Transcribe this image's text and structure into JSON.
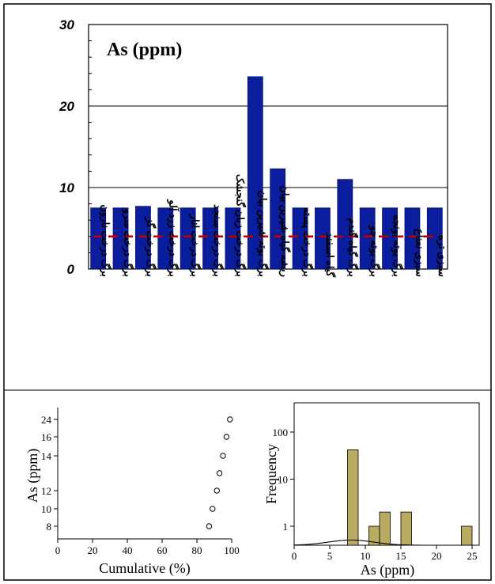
{
  "chart_data": [
    {
      "type": "bar",
      "title": "As (ppm)",
      "categories": [
        "برگ درخت نارون",
        "برگ درخت سرو",
        "برگ درخت گز",
        "برگ درخت زرد آلو",
        "برگ درخت انار",
        "برگ درخت سنجد",
        "برگ درخت زبان گنجشک",
        "برگ بوته شیرین بیان",
        "ریشه گیاه شیرین بیان",
        "برگ درخت پسته",
        "گیاه اسفند",
        "برگ گیاه گندم",
        "برگ بوته جو",
        "برگ بوته یونجه",
        "سبزی نعناع",
        "سبزی تره"
      ],
      "values": [
        7.5,
        7.5,
        7.7,
        7.5,
        7.5,
        7.5,
        7.5,
        23.6,
        12.3,
        7.5,
        7.5,
        11.0,
        7.5,
        7.5,
        7.5,
        7.5
      ],
      "reference_line": {
        "value": 4.0,
        "style": "dashed",
        "color": "#c00000"
      },
      "ylim": [
        0,
        30
      ],
      "yticks": [
        "0",
        "10",
        "20",
        "30"
      ],
      "gridlines": [
        10,
        20,
        30
      ],
      "bar_color": "#0a1d9c",
      "legend": "none"
    },
    {
      "type": "scatter",
      "xlabel": "Cumulative (%)",
      "ylabel": "As (ppm)",
      "xticks": [
        "0",
        "20",
        "40",
        "60",
        "80",
        "100"
      ],
      "yticks": [
        "8",
        "10",
        "12",
        "14",
        "16",
        "24"
      ],
      "xlim": [
        0,
        100
      ],
      "points": [
        {
          "x": 87,
          "y": "8"
        },
        {
          "x": 89,
          "y": "10"
        },
        {
          "x": 91.5,
          "y": "12"
        },
        {
          "x": 93,
          "y": "13"
        },
        {
          "x": 95,
          "y": "14"
        },
        {
          "x": 97,
          "y": "16"
        },
        {
          "x": 99,
          "y": "24"
        }
      ],
      "marker": "open-circle"
    },
    {
      "type": "bar",
      "subtype": "histogram",
      "xlabel": "As (ppm)",
      "ylabel": "Frequency",
      "xticks": [
        "0",
        "5",
        "10",
        "15",
        "20",
        "25"
      ],
      "yticks": [
        "1",
        "10",
        "100"
      ],
      "xlim": [
        0,
        26
      ],
      "yscale": "log",
      "bins": [
        {
          "x0": 7.5,
          "x1": 9,
          "count": 42
        },
        {
          "x0": 10.5,
          "x1": 12,
          "count": 1
        },
        {
          "x0": 12,
          "x1": 13.5,
          "count": 2
        },
        {
          "x0": 15,
          "x1": 16.5,
          "count": 2
        },
        {
          "x0": 23.5,
          "x1": 25,
          "count": 1
        }
      ],
      "bar_color": "#b9ac62",
      "curve": "density"
    }
  ]
}
